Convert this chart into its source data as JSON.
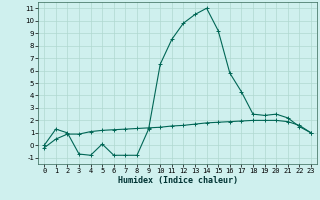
{
  "xlabel": "Humidex (Indice chaleur)",
  "bg_color": "#cff0ee",
  "grid_color": "#b0d8d0",
  "line_color": "#006655",
  "xlim": [
    -0.5,
    23.5
  ],
  "ylim": [
    -1.5,
    11.5
  ],
  "xticks": [
    0,
    1,
    2,
    3,
    4,
    5,
    6,
    7,
    8,
    9,
    10,
    11,
    12,
    13,
    14,
    15,
    16,
    17,
    18,
    19,
    20,
    21,
    22,
    23
  ],
  "yticks": [
    -1,
    0,
    1,
    2,
    3,
    4,
    5,
    6,
    7,
    8,
    9,
    10,
    11
  ],
  "curve1_x": [
    0,
    1,
    2,
    3,
    4,
    5,
    6,
    7,
    8,
    9,
    10,
    11,
    12,
    13,
    14,
    15,
    16,
    17,
    18,
    19,
    20,
    21,
    22,
    23
  ],
  "curve1_y": [
    0.0,
    1.3,
    1.0,
    -0.7,
    -0.8,
    0.1,
    -0.8,
    -0.8,
    -0.8,
    1.3,
    6.5,
    8.5,
    9.8,
    10.5,
    11.0,
    9.2,
    5.8,
    4.3,
    2.5,
    2.4,
    2.5,
    2.2,
    1.5,
    1.0
  ],
  "curve2_x": [
    0,
    1,
    2,
    3,
    4,
    5,
    6,
    7,
    8,
    9,
    10,
    11,
    12,
    13,
    14,
    15,
    16,
    17,
    18,
    19,
    20,
    21,
    22,
    23
  ],
  "curve2_y": [
    -0.2,
    0.5,
    0.9,
    0.9,
    1.1,
    1.2,
    1.25,
    1.3,
    1.35,
    1.4,
    1.45,
    1.55,
    1.6,
    1.7,
    1.8,
    1.85,
    1.9,
    1.95,
    2.0,
    2.0,
    2.0,
    1.9,
    1.6,
    1.0
  ],
  "xlabel_fontsize": 6,
  "tick_fontsize": 5,
  "linewidth": 0.8,
  "markersize": 2.5
}
